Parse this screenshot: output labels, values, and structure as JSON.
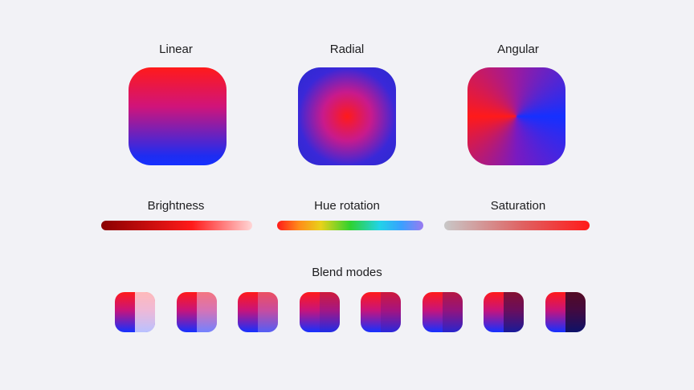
{
  "gradients": {
    "linear_label": "Linear",
    "radial_label": "Radial",
    "angular_label": "Angular"
  },
  "adjustments": {
    "brightness_label": "Brightness",
    "hue_label": "Hue rotation",
    "saturation_label": "Saturation"
  },
  "blend": {
    "title": "Blend modes",
    "overlays": [
      "rgba(255,255,255,0.7)",
      "rgba(230,230,255,0.45)",
      "rgba(200,180,230,0.35)",
      "rgba(60,30,160,0.25)",
      "rgba(90,20,140,0.3)",
      "rgba(70,20,130,0.4)",
      "rgba(30,10,70,0.55)",
      "rgba(10,5,40,0.7)"
    ]
  },
  "colors": {
    "red": "#ff1a1a",
    "blue": "#1530ff",
    "background": "#f2f2f6"
  }
}
